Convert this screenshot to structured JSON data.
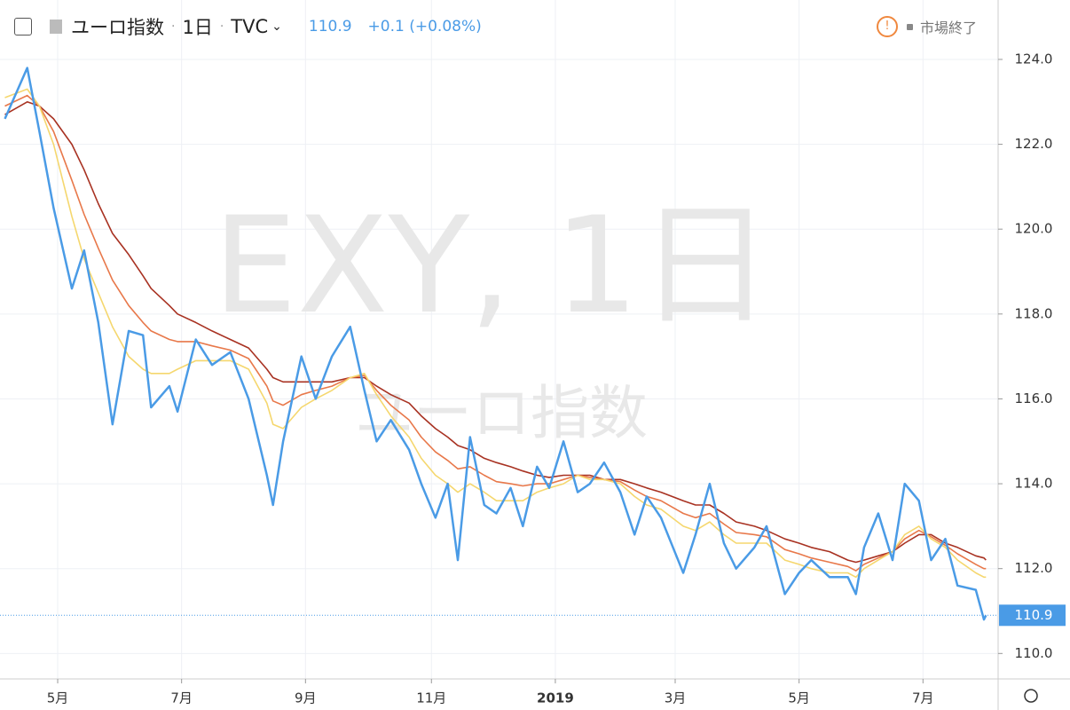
{
  "chart_data": {
    "type": "line",
    "title": "ユーロ指数",
    "interval": "1日",
    "source": "TVC",
    "last_price": 110.9,
    "change": "+0.1 (+0.08%)",
    "status": "市場終了",
    "watermark": "EXY, 1日",
    "x": [
      4,
      15,
      21,
      28,
      37,
      43,
      50,
      57,
      65,
      72,
      76,
      85,
      89,
      98,
      106,
      115,
      124,
      133,
      136,
      141,
      150,
      157,
      165,
      174,
      181,
      187,
      194,
      203,
      209,
      216,
      222,
      227,
      233,
      240,
      246,
      253,
      259,
      266,
      272,
      279,
      286,
      292,
      299,
      307,
      314,
      320,
      327,
      338,
      344,
      351,
      358,
      364,
      373,
      379,
      388,
      395,
      401,
      410,
      419,
      423,
      427,
      434,
      441,
      447,
      454,
      460,
      467,
      473,
      482,
      486,
      487
    ],
    "series": [
      {
        "color": "#a83222",
        "values": [
          122.7,
          123.0,
          122.9,
          122.6,
          122.0,
          121.4,
          120.6,
          119.9,
          119.4,
          118.9,
          118.6,
          118.2,
          118.0,
          117.8,
          117.6,
          117.4,
          117.2,
          116.7,
          116.5,
          116.4,
          116.4,
          116.4,
          116.4,
          116.5,
          116.5,
          116.3,
          116.1,
          115.9,
          115.6,
          115.3,
          115.1,
          114.9,
          114.8,
          114.6,
          114.5,
          114.4,
          114.3,
          114.2,
          114.15,
          114.2,
          114.2,
          114.2,
          114.1,
          114.1,
          114.0,
          113.9,
          113.8,
          113.6,
          113.5,
          113.5,
          113.3,
          113.1,
          113.0,
          112.9,
          112.7,
          112.6,
          112.5,
          112.4,
          112.2,
          112.15,
          112.2,
          112.3,
          112.4,
          112.6,
          112.8,
          112.8,
          112.6,
          112.5,
          112.3,
          112.25,
          112.2
        ]
      },
      {
        "color": "#e8784a",
        "values": [
          122.9,
          123.15,
          122.9,
          122.3,
          121.15,
          120.35,
          119.55,
          118.8,
          118.2,
          117.8,
          117.6,
          117.4,
          117.35,
          117.35,
          117.25,
          117.15,
          116.95,
          116.3,
          115.95,
          115.85,
          116.1,
          116.2,
          116.3,
          116.5,
          116.55,
          116.2,
          115.85,
          115.5,
          115.1,
          114.75,
          114.55,
          114.35,
          114.4,
          114.2,
          114.05,
          114.0,
          113.95,
          114.0,
          114.0,
          114.1,
          114.2,
          114.15,
          114.1,
          114.05,
          113.85,
          113.7,
          113.6,
          113.3,
          113.2,
          113.3,
          113.05,
          112.85,
          112.8,
          112.75,
          112.45,
          112.35,
          112.25,
          112.15,
          112.05,
          111.95,
          112.1,
          112.25,
          112.4,
          112.7,
          112.9,
          112.75,
          112.55,
          112.35,
          112.1,
          112.0,
          112.0
        ]
      },
      {
        "color": "#f5d76e",
        "values": [
          123.1,
          123.3,
          122.9,
          122.0,
          120.3,
          119.3,
          118.5,
          117.7,
          117.0,
          116.7,
          116.6,
          116.6,
          116.7,
          116.9,
          116.9,
          116.9,
          116.7,
          115.9,
          115.4,
          115.3,
          115.8,
          116.0,
          116.2,
          116.5,
          116.6,
          116.1,
          115.6,
          115.1,
          114.6,
          114.2,
          114.0,
          113.8,
          114.0,
          113.8,
          113.6,
          113.6,
          113.6,
          113.8,
          113.9,
          114.0,
          114.2,
          114.1,
          114.1,
          114.0,
          113.7,
          113.5,
          113.4,
          113.0,
          112.9,
          113.1,
          112.8,
          112.6,
          112.6,
          112.6,
          112.2,
          112.1,
          112.0,
          111.9,
          111.9,
          111.8,
          112.0,
          112.2,
          112.4,
          112.8,
          113.0,
          112.7,
          112.5,
          112.2,
          111.9,
          111.8,
          111.8
        ]
      },
      {
        "color": "#4a9be6",
        "values": [
          122.6,
          123.8,
          122.3,
          120.5,
          118.6,
          119.5,
          117.8,
          115.4,
          117.6,
          117.5,
          115.8,
          116.3,
          115.7,
          117.4,
          116.8,
          117.1,
          116.0,
          114.2,
          113.5,
          115.0,
          117.0,
          116.0,
          117.0,
          117.7,
          116.2,
          115.0,
          115.5,
          114.8,
          114.0,
          113.2,
          114.0,
          112.2,
          115.1,
          113.5,
          113.3,
          113.9,
          113.0,
          114.4,
          113.9,
          115.0,
          113.8,
          114.0,
          114.5,
          113.8,
          112.8,
          113.7,
          113.2,
          111.9,
          112.8,
          114.0,
          112.6,
          112.0,
          112.5,
          113.0,
          111.4,
          111.9,
          112.2,
          111.8,
          111.8,
          111.4,
          112.5,
          113.3,
          112.2,
          114.0,
          113.6,
          112.2,
          112.7,
          111.6,
          111.5,
          110.8,
          110.9
        ]
      }
    ],
    "xlim": [
      1.6,
      493
    ],
    "ylim": [
      109.4,
      125.4
    ],
    "xticks": [
      {
        "value": 30,
        "label": "5月"
      },
      {
        "value": 91,
        "label": "7月"
      },
      {
        "value": 152,
        "label": "9月"
      },
      {
        "value": 214,
        "label": "11月"
      },
      {
        "value": 275,
        "label": "2019"
      },
      {
        "value": 334,
        "label": "3月"
      },
      {
        "value": 395,
        "label": "5月"
      },
      {
        "value": 456,
        "label": "7月"
      }
    ],
    "yticks": [
      {
        "value": 110,
        "label": "110.0"
      },
      {
        "value": 112,
        "label": "112.0"
      },
      {
        "value": 114,
        "label": "114.0"
      },
      {
        "value": 116,
        "label": "116.0"
      },
      {
        "value": 118,
        "label": "118.0"
      },
      {
        "value": 120,
        "label": "120.0"
      },
      {
        "value": 122,
        "label": "122.0"
      },
      {
        "value": 124,
        "label": "124.0"
      }
    ],
    "grid": true
  }
}
